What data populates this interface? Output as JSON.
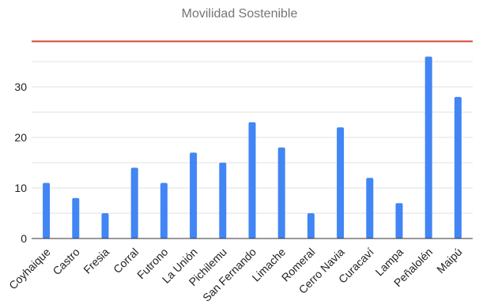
{
  "chart_data": {
    "type": "bar",
    "title": "Movilidad Sostenible",
    "categories": [
      "Coyhaique",
      "Castro",
      "Fresia",
      "Corral",
      "Futrono",
      "La Unión",
      "Pichilemu",
      "San Fernando",
      "Limache",
      "Romeral",
      "Cerro Navia",
      "Curacaví",
      "Lampa",
      "Peñalolén",
      "Maipú"
    ],
    "values": [
      11,
      8,
      5,
      14,
      11,
      17,
      15,
      23,
      18,
      5,
      22,
      12,
      7,
      36,
      28
    ],
    "yticks": [
      0,
      10,
      20,
      30
    ],
    "ylim": [
      0,
      38.5
    ],
    "reference_line": 39,
    "grid": true,
    "colors": {
      "bar": "#4285f4",
      "reference_line": "#db4437",
      "grid": "#e0e0e0",
      "axis": "#333333"
    }
  }
}
